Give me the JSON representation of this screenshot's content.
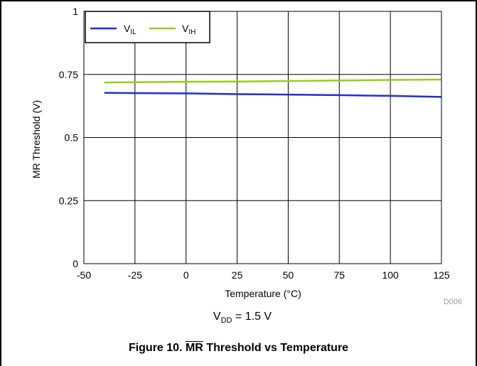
{
  "chart_data": {
    "type": "line",
    "xlabel": "Temperature (°C)",
    "ylabel": "MR Threshold  (V)",
    "xlim": [
      -50,
      125
    ],
    "ylim": [
      0,
      1
    ],
    "xticks": [
      -50,
      -25,
      0,
      25,
      50,
      75,
      100,
      125
    ],
    "yticks": [
      0,
      0.25,
      0.5,
      0.75,
      1
    ],
    "ytick_labels": [
      "0",
      "0.25",
      "0.5",
      "0.75",
      "1"
    ],
    "grid": true,
    "legend_position": "top-left",
    "series": [
      {
        "name": "VIL",
        "name_main": "V",
        "name_sub": "IL",
        "color": "#1f2fd6",
        "x": [
          -40,
          -25,
          0,
          25,
          50,
          75,
          100,
          125
        ],
        "y": [
          0.677,
          0.676,
          0.675,
          0.672,
          0.67,
          0.668,
          0.665,
          0.661
        ]
      },
      {
        "name": "VIH",
        "name_main": "V",
        "name_sub": "IH",
        "color": "#99cc1a",
        "x": [
          -40,
          -25,
          0,
          25,
          50,
          75,
          100,
          125
        ],
        "y": [
          0.718,
          0.719,
          0.721,
          0.722,
          0.724,
          0.726,
          0.728,
          0.73
        ]
      }
    ],
    "code_label": "D006"
  },
  "condition": {
    "main": "V",
    "sub": "DD",
    "rest": " = 1.5 V"
  },
  "caption": {
    "prefix": "Figure 10. ",
    "overline": "MR",
    "suffix": " Threshold vs Temperature"
  }
}
